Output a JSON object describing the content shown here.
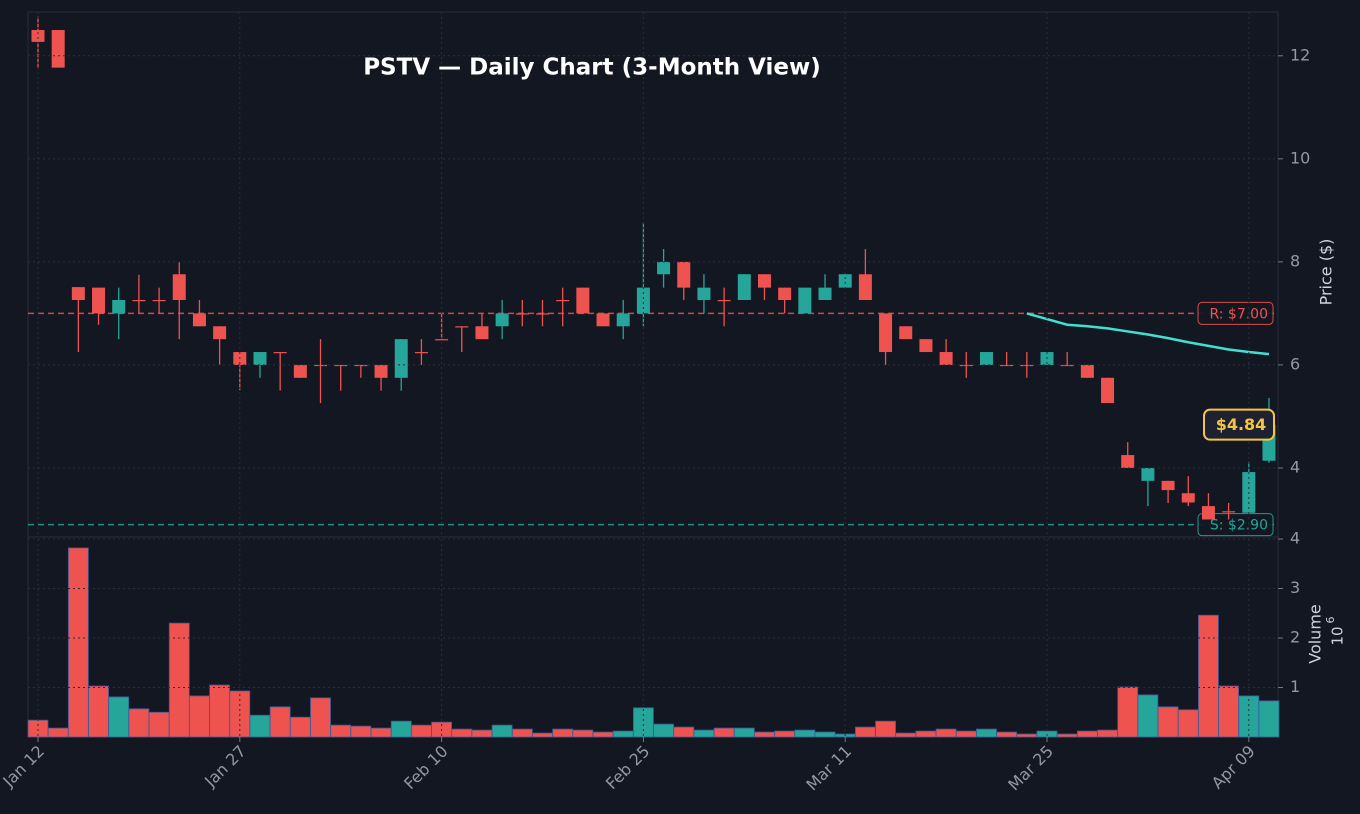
{
  "chart_data": {
    "type": "candlestick",
    "title": "PSTV — Daily Chart (3-Month View)",
    "ylabel": "Price ($)",
    "up_color": "#26a69a",
    "down_color": "#ef5350",
    "grid": true,
    "categories": [
      "Jan 12",
      null,
      null,
      null,
      null,
      null,
      null,
      null,
      null,
      null,
      "Jan 27",
      null,
      null,
      null,
      null,
      null,
      null,
      null,
      null,
      null,
      "Feb 10",
      null,
      null,
      null,
      null,
      null,
      null,
      null,
      null,
      null,
      "Feb 25",
      null,
      null,
      null,
      null,
      null,
      null,
      null,
      null,
      null,
      "Mar 11",
      null,
      null,
      null,
      null,
      null,
      null,
      null,
      null,
      null,
      "Mar 25",
      null,
      null,
      null,
      null,
      null,
      null,
      null,
      null,
      null,
      "Apr 09",
      null
    ],
    "open": [
      12.5,
      12.5,
      7.51,
      7.5,
      7.0,
      7.26,
      7.26,
      7.76,
      7.0,
      6.75,
      6.25,
      6.0,
      6.25,
      6.0,
      6.0,
      6.0,
      6.0,
      6.0,
      5.75,
      6.25,
      6.5,
      6.75,
      6.75,
      6.75,
      7.0,
      7.0,
      7.26,
      7.5,
      7.0,
      6.75,
      7.0,
      7.76,
      8.0,
      7.26,
      7.26,
      7.26,
      7.76,
      7.5,
      7.0,
      7.26,
      7.5,
      7.76,
      7.0,
      6.75,
      6.5,
      6.25,
      6.0,
      6.0,
      6.0,
      6.0,
      6.0,
      6.0,
      6.0,
      5.75,
      4.25,
      3.75,
      3.75,
      3.51,
      3.26,
      3.16,
      3.13,
      4.14
    ],
    "high": [
      12.76,
      12.5,
      7.51,
      7.5,
      7.5,
      7.75,
      7.5,
      8.0,
      7.26,
      6.75,
      6.25,
      6.25,
      6.25,
      6.0,
      6.5,
      6.0,
      6.0,
      6.0,
      6.5,
      6.5,
      7.0,
      6.75,
      7.0,
      7.26,
      7.26,
      7.26,
      7.5,
      7.5,
      7.0,
      7.26,
      8.76,
      8.25,
      8.0,
      7.76,
      7.5,
      7.76,
      7.76,
      7.5,
      7.5,
      7.76,
      7.76,
      8.25,
      7.0,
      6.75,
      6.5,
      6.5,
      6.25,
      6.25,
      6.25,
      6.25,
      6.25,
      6.25,
      6.0,
      5.75,
      4.5,
      4.0,
      3.75,
      3.84,
      3.51,
      3.32,
      4.12,
      5.36
    ],
    "low": [
      11.75,
      11.77,
      6.25,
      6.78,
      6.5,
      7.0,
      7.0,
      6.5,
      6.75,
      6.0,
      5.51,
      5.75,
      5.5,
      5.75,
      5.26,
      5.5,
      5.75,
      5.5,
      5.5,
      6.0,
      6.5,
      6.25,
      6.5,
      6.5,
      6.75,
      6.75,
      6.75,
      7.0,
      6.75,
      6.5,
      6.75,
      7.5,
      7.26,
      7.0,
      6.75,
      7.26,
      7.26,
      7.0,
      7.0,
      7.26,
      7.5,
      7.26,
      6.0,
      6.5,
      6.25,
      6.0,
      5.75,
      6.0,
      6.0,
      5.75,
      6.0,
      6.0,
      5.75,
      5.26,
      4.0,
      3.26,
      3.32,
      3.26,
      3.0,
      3.0,
      3.13,
      4.1
    ],
    "close": [
      12.27,
      11.77,
      7.26,
      7.0,
      7.26,
      7.26,
      7.26,
      7.26,
      6.75,
      6.5,
      6.0,
      6.25,
      6.25,
      5.75,
      6.0,
      6.0,
      6.0,
      5.75,
      6.5,
      6.25,
      6.5,
      6.75,
      6.5,
      7.0,
      7.0,
      7.0,
      7.26,
      7.0,
      6.75,
      7.0,
      7.5,
      8.0,
      7.5,
      7.5,
      7.26,
      7.76,
      7.5,
      7.26,
      7.5,
      7.5,
      7.76,
      7.26,
      6.25,
      6.5,
      6.25,
      6.0,
      6.0,
      6.25,
      6.0,
      6.0,
      6.25,
      6.0,
      5.75,
      5.26,
      4.0,
      4.0,
      3.57,
      3.33,
      3.0,
      3.16,
      3.92,
      4.84
    ],
    "ylim": [
      2.66,
      12.85
    ],
    "yticks": [
      4,
      6,
      8,
      10,
      12
    ],
    "moving_average": {
      "color": "#40e0d0",
      "values": [
        null,
        null,
        null,
        null,
        null,
        null,
        null,
        null,
        null,
        null,
        null,
        null,
        null,
        null,
        null,
        null,
        null,
        null,
        null,
        null,
        null,
        null,
        null,
        null,
        null,
        null,
        null,
        null,
        null,
        null,
        null,
        null,
        null,
        null,
        null,
        null,
        null,
        null,
        null,
        null,
        null,
        null,
        null,
        null,
        null,
        null,
        null,
        null,
        null,
        7.0,
        6.89,
        6.78,
        6.75,
        6.71,
        6.65,
        6.59,
        6.52,
        6.44,
        6.37,
        6.3,
        6.25,
        6.21
      ]
    },
    "resistance": {
      "value": 7.0,
      "label": "R: $7.00",
      "color": "#ef5350"
    },
    "support": {
      "value": 2.9,
      "label": "S: $2.90",
      "color": "#26a69a"
    },
    "last_price": {
      "value": 4.84,
      "label": "$4.84",
      "color": "#f5c542"
    },
    "volume": {
      "label": "Volume",
      "multiplier_base": "10",
      "multiplier_exp": "6",
      "ylim": [
        0,
        4
      ],
      "yticks": [
        1,
        2,
        3,
        4
      ],
      "values": [
        0.34,
        0.18,
        3.82,
        1.03,
        0.81,
        0.57,
        0.5,
        2.3,
        0.83,
        1.05,
        0.93,
        0.44,
        0.61,
        0.4,
        0.79,
        0.24,
        0.22,
        0.18,
        0.32,
        0.24,
        0.3,
        0.16,
        0.14,
        0.24,
        0.16,
        0.08,
        0.16,
        0.14,
        0.1,
        0.12,
        0.59,
        0.26,
        0.2,
        0.14,
        0.18,
        0.18,
        0.1,
        0.12,
        0.14,
        0.1,
        0.06,
        0.2,
        0.32,
        0.08,
        0.12,
        0.16,
        0.12,
        0.16,
        0.1,
        0.06,
        0.12,
        0.06,
        0.12,
        0.14,
        1.01,
        0.85,
        0.61,
        0.55,
        2.46,
        1.03,
        0.83,
        0.73
      ]
    }
  }
}
